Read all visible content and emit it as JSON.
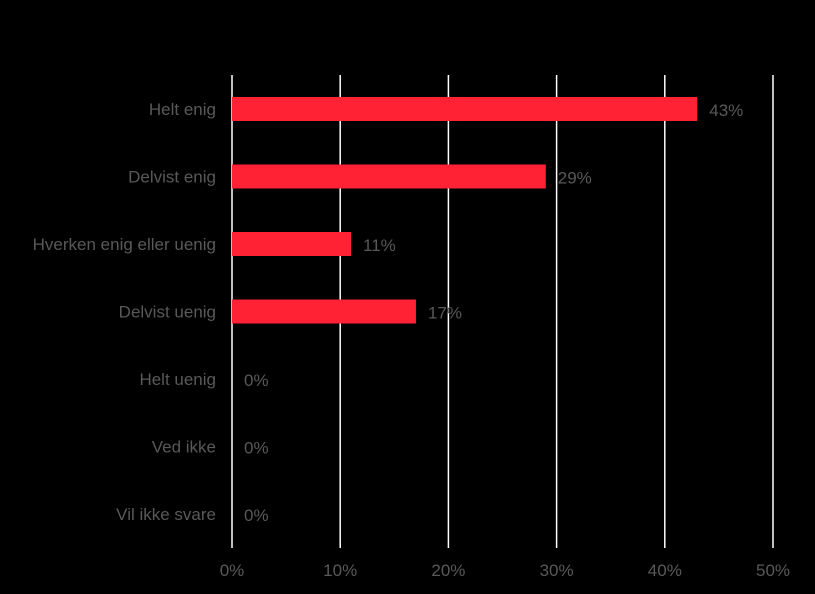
{
  "chart_data": {
    "type": "bar",
    "orientation": "horizontal",
    "categories": [
      "Helt enig",
      "Delvist enig",
      "Hverken enig eller uenig",
      "Delvist uenig",
      "Helt uenig",
      "Ved ikke",
      "Vil ikke svare"
    ],
    "values": [
      43,
      29,
      11,
      17,
      0,
      0,
      0
    ],
    "data_labels": [
      "43%",
      "29%",
      "11%",
      "17%",
      "0%",
      "0%",
      "0%"
    ],
    "xlim": [
      0,
      50
    ],
    "x_ticks": [
      0,
      10,
      20,
      30,
      40,
      50
    ],
    "x_tick_labels": [
      "0%",
      "10%",
      "20%",
      "30%",
      "40%",
      "50%"
    ],
    "grid": "vertical",
    "legend": "none",
    "colors": {
      "background": "#000000",
      "bar": "#FF2234",
      "gridline": "#FFFFFF",
      "text": "#595959"
    }
  }
}
